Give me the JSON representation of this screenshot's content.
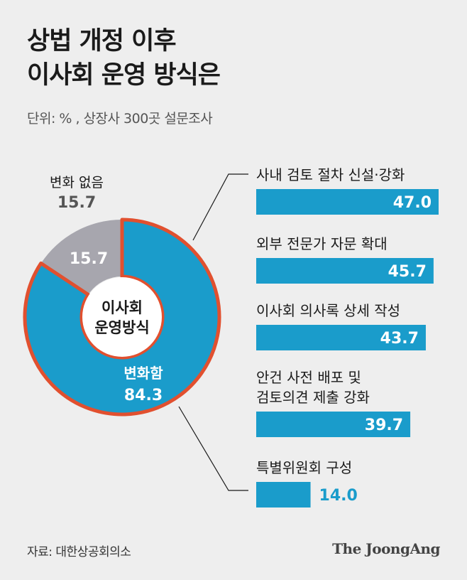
{
  "title": [
    "상법 개정 이후",
    "이사회 운영 방식은"
  ],
  "subtitle": "단위: % , 상장사 300곳 설문조사",
  "colors": {
    "accent": "#1a9ccb",
    "gray": "#a7a6ae",
    "outline": "#e1502f",
    "dark": "#1a1a1a",
    "muted": "#555555"
  },
  "chart_data": [
    {
      "type": "pie",
      "center_label": [
        "이사회",
        "운영방식"
      ],
      "slices": [
        {
          "label": "변화함",
          "value": 84.3,
          "value_label": "84.3",
          "color": "#1a9ccb"
        },
        {
          "label": "변화 없음",
          "value": 15.7,
          "value_label": "15.7",
          "color": "#a7a6ae"
        }
      ],
      "outside_label": {
        "label": "변화 없음",
        "value_label": "15.7"
      }
    },
    {
      "type": "bar",
      "orientation": "horizontal",
      "categories": [
        [
          "사내 검토 절차 신설·강화"
        ],
        [
          "외부 전문가 자문 확대"
        ],
        [
          "이사회 의사록 상세 작성"
        ],
        [
          "안건 사전 배포 및",
          "검토의견 제출 강화"
        ],
        [
          "특별위원회 구성"
        ]
      ],
      "values": [
        47.0,
        45.7,
        43.7,
        39.7,
        14.0
      ],
      "value_labels": [
        "47.0",
        "45.7",
        "43.7",
        "39.7",
        "14.0"
      ],
      "color": "#1a9ccb"
    }
  ],
  "footer": {
    "source": "자료: 대한상공회의소",
    "brand": "The JoongAng"
  }
}
